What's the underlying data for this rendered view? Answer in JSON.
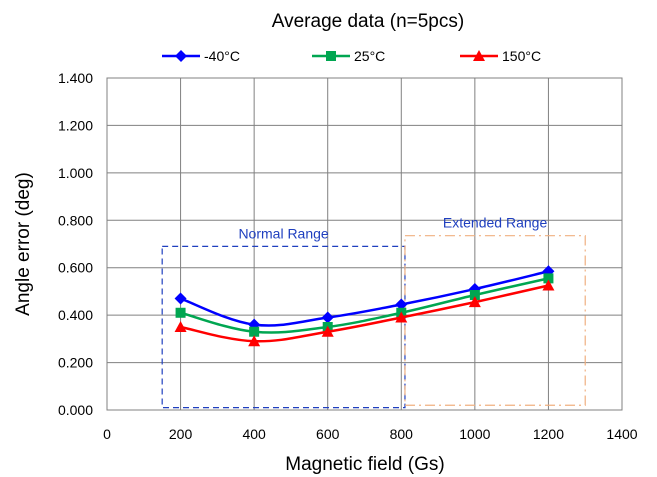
{
  "chart_data": {
    "type": "line",
    "title": "Average data (n=5pcs)",
    "xlabel": "Magnetic field (Gs)",
    "ylabel": "Angle error (deg)",
    "xlim": [
      0,
      1400
    ],
    "ylim": [
      0,
      1.4
    ],
    "x_ticks": [
      "0",
      "200",
      "400",
      "600",
      "800",
      "1000",
      "1200",
      "1400"
    ],
    "y_ticks": [
      "0.000",
      "0.200",
      "0.400",
      "0.600",
      "0.800",
      "1.000",
      "1.200",
      "1.400"
    ],
    "grid": true,
    "legend_position": "top",
    "x": [
      200,
      400,
      600,
      800,
      1000,
      1200
    ],
    "series": [
      {
        "name": "-40°C",
        "values": [
          0.47,
          0.36,
          0.39,
          0.445,
          0.51,
          0.585
        ],
        "color": "#0000ff",
        "marker": "diamond"
      },
      {
        "name": "25°C",
        "values": [
          0.41,
          0.33,
          0.35,
          0.41,
          0.485,
          0.555
        ],
        "color": "#00a651",
        "marker": "square"
      },
      {
        "name": "150°C",
        "values": [
          0.35,
          0.29,
          0.33,
          0.39,
          0.455,
          0.525
        ],
        "color": "#ff0000",
        "marker": "triangle"
      }
    ],
    "annotations": [
      {
        "label": "Normal Range",
        "x_range": [
          150,
          810
        ],
        "y_range": [
          0.01,
          0.69
        ],
        "color": "#1f3fbf",
        "style": "dashed"
      },
      {
        "label": "Extended Range",
        "x_range": [
          810,
          1300
        ],
        "y_range": [
          0.02,
          0.735
        ],
        "color": "#f0b080",
        "style": "dash-dot"
      }
    ]
  }
}
